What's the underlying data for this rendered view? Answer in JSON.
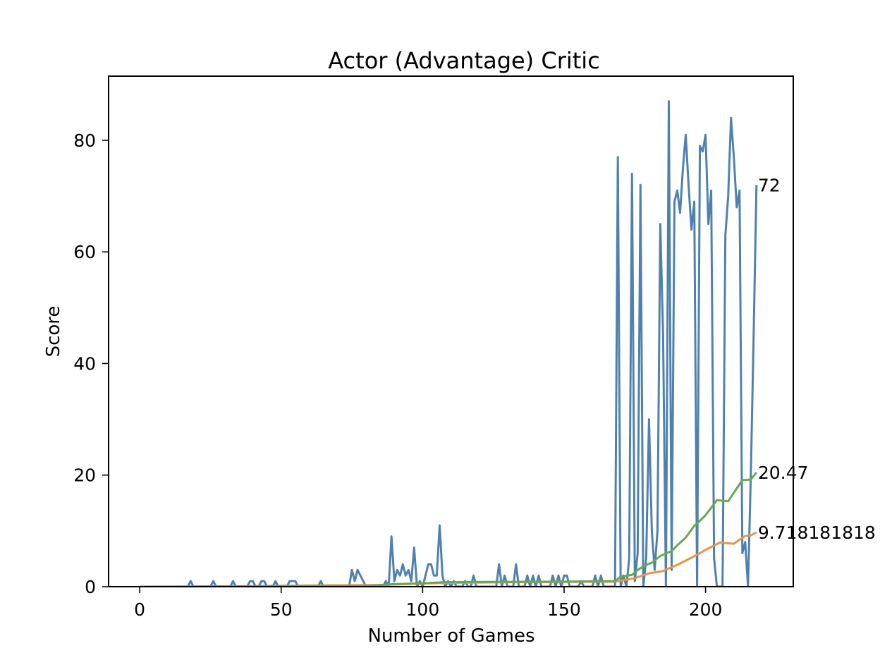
{
  "chart_data": {
    "type": "line",
    "title": "Actor (Advantage) Critic",
    "xlabel": "Number of Games",
    "ylabel": "Score",
    "xlim": [
      -11,
      231
    ],
    "ylim": [
      0,
      91.5
    ],
    "x_ticks": [
      0,
      50,
      100,
      150,
      200
    ],
    "y_ticks": [
      0,
      20,
      40,
      60,
      80
    ],
    "grid": false,
    "legend": "none",
    "colors": {
      "score": "#4f81b0",
      "mean_score": "#e8954a",
      "recent_mean": "#6aa84f"
    },
    "series": [
      {
        "key": "score",
        "points": [
          [
            0,
            0
          ],
          [
            17,
            0
          ],
          [
            18,
            1
          ],
          [
            19,
            0
          ],
          [
            25,
            0
          ],
          [
            26,
            1
          ],
          [
            27,
            0
          ],
          [
            32,
            0
          ],
          [
            33,
            1
          ],
          [
            34,
            0
          ],
          [
            38,
            0
          ],
          [
            39,
            1
          ],
          [
            40,
            1
          ],
          [
            41,
            0
          ],
          [
            42,
            0
          ],
          [
            43,
            1
          ],
          [
            44,
            1
          ],
          [
            45,
            0
          ],
          [
            47,
            0
          ],
          [
            48,
            1
          ],
          [
            49,
            0
          ],
          [
            52,
            0
          ],
          [
            53,
            1
          ],
          [
            54,
            1
          ],
          [
            55,
            1
          ],
          [
            56,
            0
          ],
          [
            63,
            0
          ],
          [
            64,
            1
          ],
          [
            65,
            0
          ],
          [
            74,
            0
          ],
          [
            75,
            3
          ],
          [
            76,
            1
          ],
          [
            77,
            3
          ],
          [
            78,
            2
          ],
          [
            79,
            1
          ],
          [
            80,
            0
          ],
          [
            86,
            0
          ],
          [
            87,
            1
          ],
          [
            88,
            0
          ],
          [
            89,
            9
          ],
          [
            90,
            1
          ],
          [
            91,
            3
          ],
          [
            92,
            2
          ],
          [
            93,
            4
          ],
          [
            94,
            2
          ],
          [
            95,
            3
          ],
          [
            96,
            1
          ],
          [
            97,
            7
          ],
          [
            98,
            0
          ],
          [
            99,
            1
          ],
          [
            100,
            0
          ],
          [
            101,
            2
          ],
          [
            102,
            4
          ],
          [
            103,
            4
          ],
          [
            104,
            2
          ],
          [
            105,
            2
          ],
          [
            106,
            11
          ],
          [
            107,
            2
          ],
          [
            108,
            0
          ],
          [
            109,
            1
          ],
          [
            110,
            0
          ],
          [
            111,
            1
          ],
          [
            112,
            0
          ],
          [
            114,
            0
          ],
          [
            115,
            1
          ],
          [
            116,
            0
          ],
          [
            117,
            0
          ],
          [
            118,
            2
          ],
          [
            119,
            0
          ],
          [
            126,
            0
          ],
          [
            127,
            4
          ],
          [
            128,
            0
          ],
          [
            129,
            2
          ],
          [
            130,
            0
          ],
          [
            132,
            0
          ],
          [
            133,
            4
          ],
          [
            134,
            0
          ],
          [
            136,
            0
          ],
          [
            137,
            2
          ],
          [
            138,
            0
          ],
          [
            139,
            2
          ],
          [
            140,
            0
          ],
          [
            141,
            2
          ],
          [
            142,
            0
          ],
          [
            145,
            0
          ],
          [
            146,
            2
          ],
          [
            147,
            0
          ],
          [
            148,
            2
          ],
          [
            149,
            0
          ],
          [
            150,
            2
          ],
          [
            151,
            2
          ],
          [
            152,
            0
          ],
          [
            154,
            0
          ],
          [
            155,
            0
          ],
          [
            156,
            1
          ],
          [
            157,
            0
          ],
          [
            160,
            0
          ],
          [
            161,
            2
          ],
          [
            162,
            0
          ],
          [
            163,
            2
          ],
          [
            164,
            0
          ],
          [
            168,
            0
          ],
          [
            169,
            77
          ],
          [
            170,
            0
          ],
          [
            171,
            2
          ],
          [
            172,
            0
          ],
          [
            173,
            5
          ],
          [
            174,
            74
          ],
          [
            175,
            1
          ],
          [
            176,
            6
          ],
          [
            177,
            72
          ],
          [
            178,
            0
          ],
          [
            179,
            5
          ],
          [
            180,
            30
          ],
          [
            181,
            10
          ],
          [
            182,
            3
          ],
          [
            183,
            10
          ],
          [
            184,
            65
          ],
          [
            185,
            45
          ],
          [
            186,
            0
          ],
          [
            187,
            87
          ],
          [
            188,
            3
          ],
          [
            189,
            69
          ],
          [
            190,
            71
          ],
          [
            191,
            67
          ],
          [
            192,
            75
          ],
          [
            193,
            81
          ],
          [
            194,
            72
          ],
          [
            195,
            64
          ],
          [
            196,
            69
          ],
          [
            197,
            0
          ],
          [
            198,
            79
          ],
          [
            199,
            78
          ],
          [
            200,
            81
          ],
          [
            201,
            65
          ],
          [
            202,
            71
          ],
          [
            203,
            5
          ],
          [
            204,
            0
          ],
          [
            206,
            0
          ],
          [
            207,
            63
          ],
          [
            208,
            70
          ],
          [
            209,
            84
          ],
          [
            210,
            77
          ],
          [
            211,
            68
          ],
          [
            212,
            71
          ],
          [
            213,
            6
          ],
          [
            214,
            8
          ],
          [
            215,
            0
          ],
          [
            216,
            20
          ],
          [
            217,
            45
          ],
          [
            218,
            72
          ]
        ],
        "end_label": "72"
      },
      {
        "key": "mean_score",
        "points": [
          [
            0,
            0
          ],
          [
            20,
            0
          ],
          [
            40,
            0.1
          ],
          [
            60,
            0.2
          ],
          [
            85,
            0.3
          ],
          [
            100,
            0.55
          ],
          [
            110,
            0.7
          ],
          [
            130,
            0.8
          ],
          [
            150,
            0.85
          ],
          [
            168,
            0.9
          ],
          [
            170,
            1.1
          ],
          [
            175,
            1.5
          ],
          [
            180,
            2.4
          ],
          [
            185,
            2.8
          ],
          [
            188,
            3.5
          ],
          [
            190,
            3.9
          ],
          [
            195,
            5.2
          ],
          [
            198,
            6.0
          ],
          [
            200,
            6.6
          ],
          [
            205,
            7.9
          ],
          [
            210,
            7.7
          ],
          [
            212,
            8.4
          ],
          [
            214,
            9.1
          ],
          [
            216,
            9.2
          ],
          [
            218,
            9.72
          ]
        ],
        "end_label": "9.718181818"
      },
      {
        "key": "recent_mean",
        "points": [
          [
            0,
            0
          ],
          [
            40,
            0.1
          ],
          [
            80,
            0.15
          ],
          [
            90,
            0.45
          ],
          [
            100,
            0.6
          ],
          [
            107,
            0.8
          ],
          [
            120,
            0.85
          ],
          [
            150,
            0.9
          ],
          [
            168,
            1.0
          ],
          [
            170,
            1.8
          ],
          [
            174,
            2.1
          ],
          [
            176,
            3.0
          ],
          [
            179,
            3.9
          ],
          [
            181,
            4.3
          ],
          [
            184,
            5.5
          ],
          [
            188,
            6.4
          ],
          [
            190,
            7.4
          ],
          [
            193,
            8.8
          ],
          [
            196,
            10.9
          ],
          [
            198,
            11.8
          ],
          [
            200,
            12.8
          ],
          [
            204,
            15.5
          ],
          [
            208,
            15.3
          ],
          [
            211,
            17.6
          ],
          [
            213,
            19.1
          ],
          [
            216,
            19.2
          ],
          [
            218,
            20.47
          ]
        ],
        "end_label": "20.47"
      }
    ]
  }
}
